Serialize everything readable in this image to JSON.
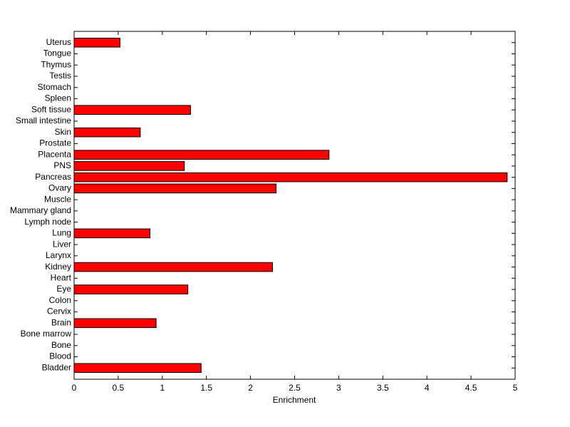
{
  "chart_data": {
    "type": "barh",
    "xlabel": "Enrichment",
    "categories": [
      "Bladder",
      "Blood",
      "Bone",
      "Bone marrow",
      "Brain",
      "Cervix",
      "Colon",
      "Eye",
      "Heart",
      "Kidney",
      "Larynx",
      "Liver",
      "Lung",
      "Lymph node",
      "Mammary gland",
      "Muscle",
      "Ovary",
      "Pancreas",
      "PNS",
      "Placenta",
      "Prostate",
      "Skin",
      "Small intestine",
      "Soft tissue",
      "Spleen",
      "Stomach",
      "Testis",
      "Thymus",
      "Tongue",
      "Uterus"
    ],
    "values": [
      1.44,
      0,
      0,
      0,
      0.93,
      0,
      0,
      1.29,
      0,
      2.25,
      0,
      0,
      0.86,
      0,
      0,
      0,
      2.29,
      4.91,
      1.25,
      2.89,
      0,
      0.75,
      0,
      1.32,
      0,
      0,
      0,
      0,
      0,
      0.52
    ],
    "color": "#ff0000",
    "xlim": [
      0,
      5
    ],
    "xticks": [
      0,
      0.5,
      1,
      1.5,
      2,
      2.5,
      3,
      3.5,
      4,
      4.5,
      5
    ]
  }
}
